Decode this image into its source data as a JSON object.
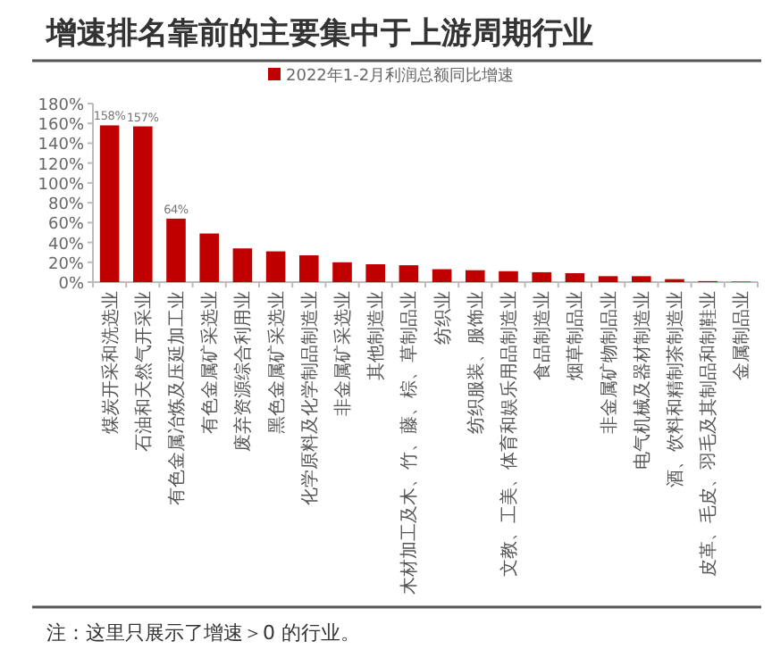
{
  "chart_data": {
    "type": "bar",
    "title": "增速排名靠前的主要集中于上游周期行业",
    "categories": [
      "煤炭开采和洗选业",
      "石油和天然气开采业",
      "有色金属冶炼及压延加工业",
      "有色金属矿采选业",
      "废弃资源综合利用业",
      "黑色金属矿采选业",
      "化学原料及化学制品制造业",
      "非金属矿采选业",
      "其他制造业",
      "木材加工及木、竹、藤、棕、草制品业",
      "纺织业",
      "纺织服装、服饰业",
      "文教、工美、体育和娱乐用品制造业",
      "食品制造业",
      "烟草制品业",
      "非金属矿物制品业",
      "电气机械及器材制造业",
      "酒、饮料和精制茶制造业",
      "皮革、毛皮、羽毛及其制品和制鞋业",
      "金属制品业"
    ],
    "series": [
      {
        "name": "2022年1-2月利润总额同比增速",
        "color": "#c00000",
        "values": [
          158,
          157,
          64,
          49,
          34,
          31,
          27,
          20,
          18,
          17,
          13,
          12,
          11,
          10,
          9,
          6,
          6,
          3,
          1,
          0.5
        ],
        "value_labels": [
          "158%",
          "157%",
          "64%",
          null,
          null,
          null,
          null,
          null,
          null,
          null,
          null,
          null,
          null,
          null,
          null,
          null,
          null,
          null,
          null,
          null
        ]
      }
    ],
    "ylim": [
      0,
      180
    ],
    "yticks": [
      {
        "value": 0,
        "label": "0%"
      },
      {
        "value": 20,
        "label": "20%"
      },
      {
        "value": 40,
        "label": "40%"
      },
      {
        "value": 60,
        "label": "60%"
      },
      {
        "value": 80,
        "label": "80%"
      },
      {
        "value": 100,
        "label": "100%"
      },
      {
        "value": 120,
        "label": "120%"
      },
      {
        "value": 140,
        "label": "140%"
      },
      {
        "value": 160,
        "label": "160%"
      },
      {
        "value": 180,
        "label": "180%"
      }
    ],
    "grid": false,
    "legend": "top",
    "annotations": [
      "注：这里只展示了增速＞0 的行业。"
    ]
  }
}
